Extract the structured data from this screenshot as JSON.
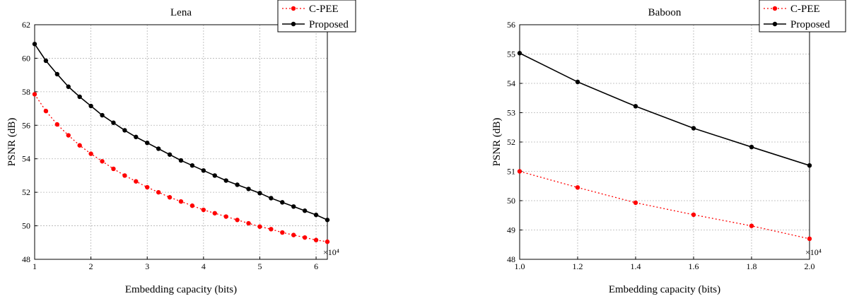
{
  "chart_data": [
    {
      "type": "line",
      "title": "Lena",
      "xlabel": "Embedding capacity (bits)",
      "ylabel": "PSNR (dB)",
      "x_multiplier_label": "×10⁴",
      "xlim": [
        1,
        6.2
      ],
      "ylim": [
        48,
        62
      ],
      "xticks": [
        "1",
        "2",
        "3",
        "4",
        "5",
        "6"
      ],
      "yticks": [
        "48",
        "50",
        "52",
        "54",
        "56",
        "58",
        "60",
        "62"
      ],
      "grid": true,
      "legend": "top-right",
      "x": [
        1.0,
        1.2,
        1.4,
        1.6,
        1.8,
        2.0,
        2.2,
        2.4,
        2.6,
        2.8,
        3.0,
        3.2,
        3.4,
        3.6,
        3.8,
        4.0,
        4.2,
        4.4,
        4.6,
        4.8,
        5.0,
        5.2,
        5.4,
        5.6,
        5.8,
        6.0,
        6.2
      ],
      "series": [
        {
          "name": "C-PEE",
          "color": "#ff0000",
          "style": "dotted-circle",
          "values": [
            57.85,
            56.85,
            56.05,
            55.4,
            54.8,
            54.3,
            53.85,
            53.4,
            53.0,
            52.65,
            52.3,
            52.0,
            51.7,
            51.45,
            51.2,
            50.95,
            50.75,
            50.55,
            50.35,
            50.15,
            49.95,
            49.8,
            49.6,
            49.45,
            49.3,
            49.15,
            49.05
          ]
        },
        {
          "name": "Proposed",
          "color": "#000000",
          "style": "solid-circle",
          "values": [
            60.85,
            59.85,
            59.05,
            58.3,
            57.7,
            57.15,
            56.6,
            56.15,
            55.7,
            55.3,
            54.95,
            54.6,
            54.25,
            53.9,
            53.6,
            53.3,
            53.0,
            52.7,
            52.45,
            52.2,
            51.95,
            51.65,
            51.4,
            51.15,
            50.9,
            50.65,
            50.35
          ]
        }
      ]
    },
    {
      "type": "line",
      "title": "Baboon",
      "xlabel": "Embedding capacity (bits)",
      "ylabel": "PSNR (dB)",
      "x_multiplier_label": "×10⁴",
      "xlim": [
        1.0,
        2.0
      ],
      "ylim": [
        48,
        56
      ],
      "xticks": [
        "1.0",
        "1.2",
        "1.4",
        "1.6",
        "1.8",
        "2.0"
      ],
      "yticks": [
        "48",
        "49",
        "50",
        "51",
        "52",
        "53",
        "54",
        "55",
        "56"
      ],
      "grid": true,
      "legend": "top-right",
      "x": [
        1.0,
        1.2,
        1.4,
        1.6,
        1.8,
        2.0
      ],
      "series": [
        {
          "name": "C-PEE",
          "color": "#ff0000",
          "style": "dotted-circle",
          "values": [
            51.0,
            50.45,
            49.93,
            49.52,
            49.14,
            48.7
          ]
        },
        {
          "name": "Proposed",
          "color": "#000000",
          "style": "solid-circle",
          "values": [
            55.03,
            54.05,
            53.22,
            52.47,
            51.83,
            51.2
          ]
        }
      ]
    }
  ]
}
